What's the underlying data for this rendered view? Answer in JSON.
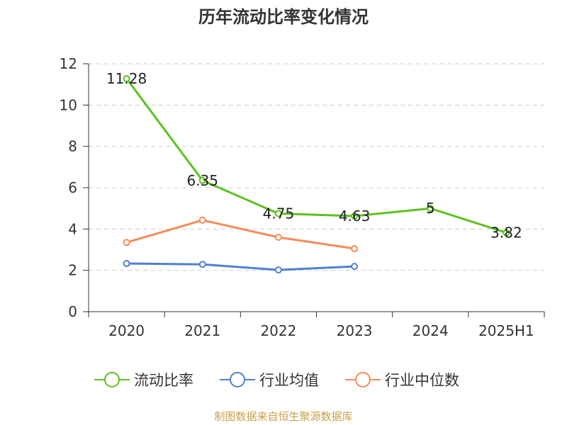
{
  "title": "历年流动比率变化情况",
  "source": "制图数据来自恒生聚源数据库",
  "colors": {
    "current_ratio": "#5cc21e",
    "industry_mean": "#4f7fd6",
    "industry_median": "#f58c58",
    "grid": "#cccccc",
    "axis": "#333333",
    "source": "#c8a04a"
  },
  "chart_data": {
    "type": "line",
    "title": "历年流动比率变化情况",
    "categories": [
      "2020",
      "2021",
      "2022",
      "2023",
      "2024",
      "2025H1"
    ],
    "ylim": [
      0,
      12
    ],
    "yticks": [
      0,
      2,
      4,
      6,
      8,
      10,
      12
    ],
    "grid": "horizontal-dashed",
    "legend_position": "bottom",
    "series": [
      {
        "name": "流动比率",
        "key": "current_ratio",
        "values": [
          11.28,
          6.35,
          4.75,
          4.63,
          5,
          3.82
        ],
        "labels": [
          "11.28",
          "6.35",
          "4.75",
          "4.63",
          "5",
          "3.82"
        ]
      },
      {
        "name": "行业均值",
        "key": "industry_mean",
        "values": [
          2.33,
          2.29,
          2.02,
          2.19,
          null,
          null
        ]
      },
      {
        "name": "行业中位数",
        "key": "industry_median",
        "values": [
          3.35,
          4.43,
          3.6,
          3.05,
          null,
          null
        ]
      }
    ]
  }
}
